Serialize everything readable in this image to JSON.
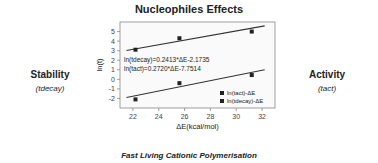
{
  "chart_data": {
    "type": "scatter",
    "title": "Nucleophiles Effects",
    "x_label": "ΔE(kcal/mol)",
    "y_label": "ln(t)",
    "xlim": [
      21,
      33
    ],
    "ylim": [
      -3,
      6
    ],
    "xticks": [
      22,
      24,
      26,
      28,
      30,
      32
    ],
    "yticks": [
      -2,
      -1,
      0,
      1,
      2,
      3,
      4,
      5
    ],
    "grid": false,
    "legend": "lower right",
    "series": [
      {
        "name": "ln(tact)-ΔE",
        "type": "scatter",
        "color": "#222222",
        "marker": "square",
        "x": [
          22.2,
          25.6,
          31.2
        ],
        "values": [
          -2.1,
          -0.4,
          0.45
        ]
      },
      {
        "name": "ln(tdecay)-ΔE",
        "type": "scatter",
        "color": "#222222",
        "marker": "square",
        "x": [
          22.2,
          25.6,
          31.2
        ],
        "values": [
          3.1,
          4.3,
          5.0
        ]
      },
      {
        "type": "line",
        "color": "#333333",
        "line_style": "solid",
        "x": [
          21.5,
          32.2
        ],
        "values": [
          3.01445,
          5.59636
        ]
      },
      {
        "type": "line",
        "color": "#333333",
        "line_style": "solid",
        "x": [
          21.5,
          32.2
        ],
        "values": [
          -1.9034,
          1.007
        ]
      }
    ],
    "annotations": [
      "ln(tdecay)=0.2413*ΔE-2.1735",
      "ln(tact)=0.2720*ΔE-7.7514",
      "Stability",
      "(tdecay)",
      "Activity",
      "(tact)",
      "Fast Living Cationic Polymerisation"
    ]
  }
}
